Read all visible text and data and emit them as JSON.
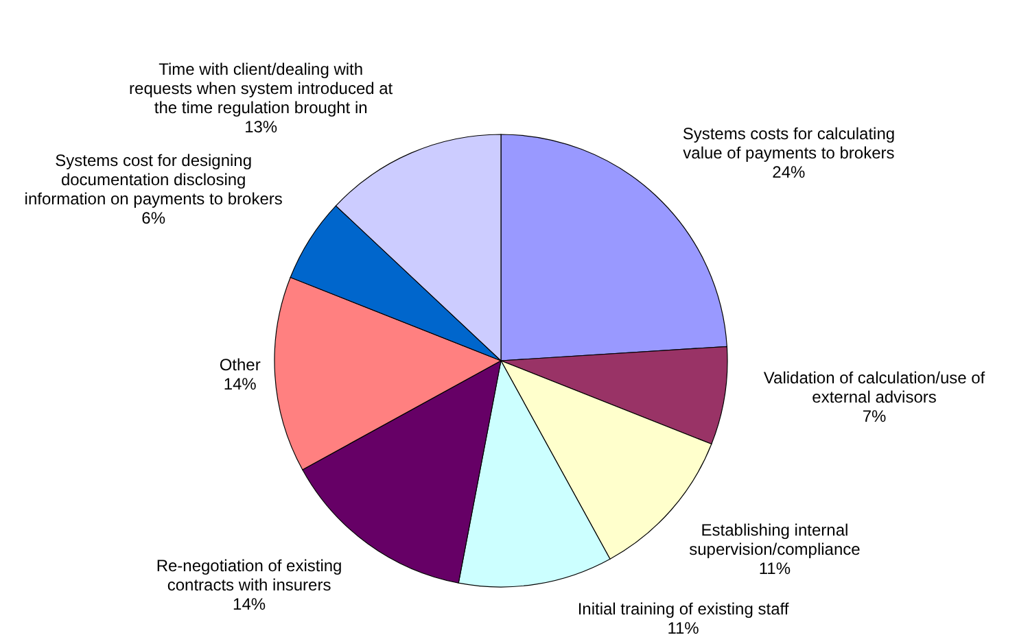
{
  "chart_data": {
    "type": "pie",
    "categories": [
      "Systems costs for calculating value of payments to brokers",
      "Validation of calculation/use of external advisors",
      "Establishing internal supervision/compliance",
      "Initial training of existing staff",
      "Re-negotiation of existing contracts with insurers",
      "Other",
      "Systems cost for designing documentation disclosing information on payments to brokers",
      "Time with client/dealing with requests when system introduced at the time regulation brought in"
    ],
    "values": [
      24,
      7,
      11,
      11,
      14,
      14,
      6,
      13
    ],
    "value_labels": [
      "24%",
      "7%",
      "11%",
      "11%",
      "14%",
      "14%",
      "6%",
      "13%"
    ],
    "colors": [
      "#9999ff",
      "#993366",
      "#ffffcc",
      "#ccffff",
      "#660066",
      "#ff8080",
      "#0066cc",
      "#ccccff"
    ],
    "legend": false
  }
}
